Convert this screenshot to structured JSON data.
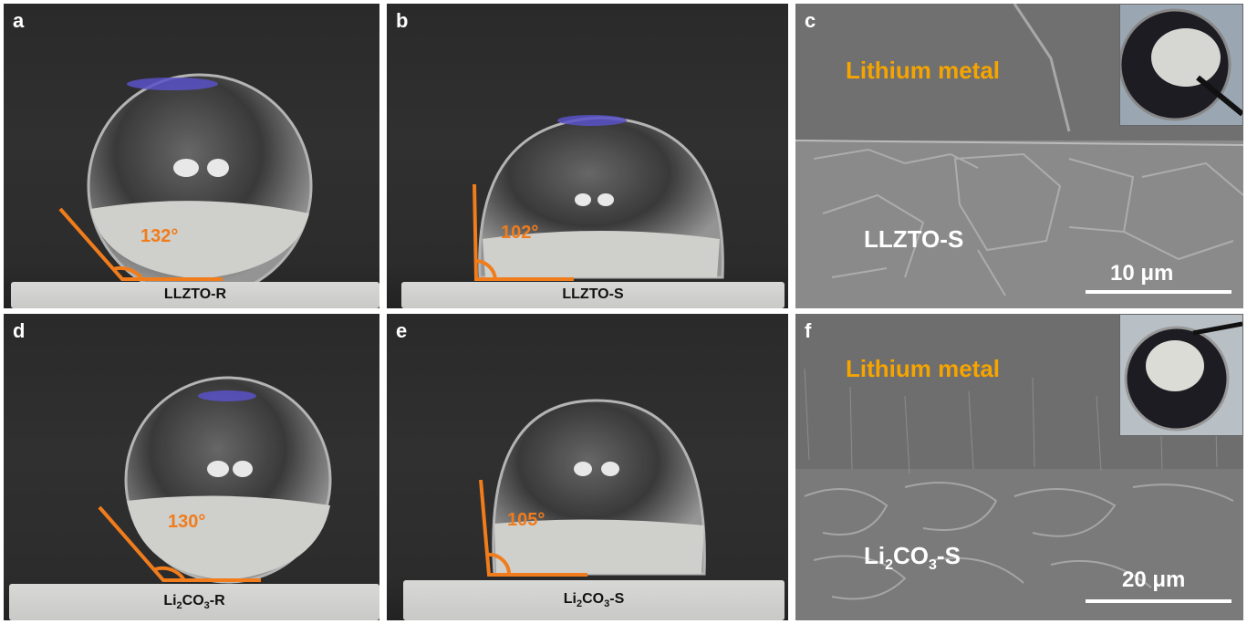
{
  "panels": {
    "a": {
      "letter": "a",
      "label": "LLZTO-R",
      "angle": "132°"
    },
    "b": {
      "letter": "b",
      "label": "LLZTO-S",
      "angle": "102°"
    },
    "c": {
      "letter": "c",
      "top_label": "Lithium metal",
      "bottom_label": "LLZTO-S",
      "scale": "10 μm"
    },
    "d": {
      "letter": "d",
      "label_main": "Li",
      "label_sub1": "2",
      "label_mid": "CO",
      "label_sub2": "3",
      "label_end": "-R",
      "angle": "130°"
    },
    "e": {
      "letter": "e",
      "label_main": "Li",
      "label_sub1": "2",
      "label_mid": "CO",
      "label_sub2": "3",
      "label_end": "-S",
      "angle": "105°"
    },
    "f": {
      "letter": "f",
      "top_label": "Lithium metal",
      "bottom_main": "Li",
      "bottom_sub1": "2",
      "bottom_mid": "CO",
      "bottom_sub2": "3",
      "bottom_end": "-S",
      "scale": "20 μm"
    }
  },
  "colors": {
    "angle_line": "#f07c1c",
    "lithium_label": "#f5a400"
  }
}
